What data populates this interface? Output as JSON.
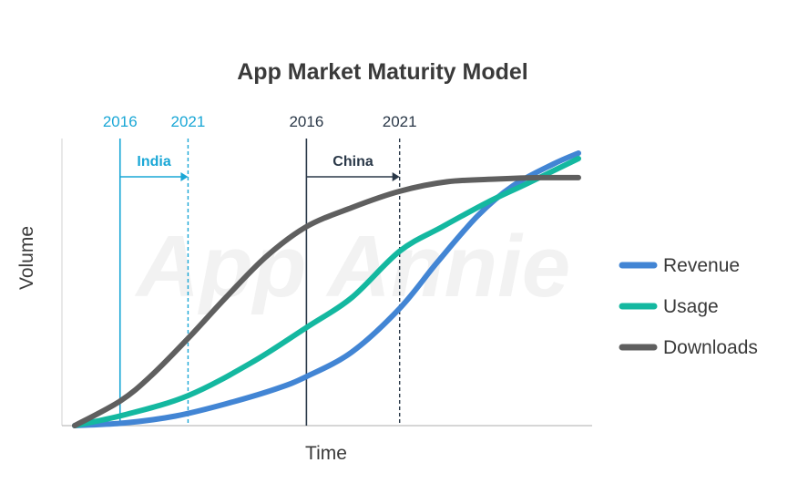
{
  "chart_data": {
    "type": "line",
    "title": "App Market Maturity Model",
    "xlabel": "Time",
    "ylabel": "Volume",
    "watermark": "App Annie",
    "xlim": [
      0,
      100
    ],
    "ylim": [
      0,
      100
    ],
    "legend_position": "right",
    "series": [
      {
        "name": "Revenue",
        "color": "#4285d4",
        "x": [
          0,
          10,
          20,
          30,
          40,
          46,
          55,
          64.5,
          72,
          80,
          87,
          95,
          100
        ],
        "y": [
          0,
          1,
          3.5,
          8,
          13.5,
          18,
          27,
          43,
          60,
          77,
          88,
          96,
          100
        ]
      },
      {
        "name": "Usage",
        "color": "#14b8a0",
        "x": [
          0,
          10,
          22.5,
          35,
          46,
          55,
          64.5,
          73,
          82,
          90,
          100
        ],
        "y": [
          0,
          4,
          11,
          23,
          36,
          47,
          64,
          73,
          82,
          89,
          98
        ]
      },
      {
        "name": "Downloads",
        "color": "#5f5f5f",
        "x": [
          0,
          9,
          15,
          22.5,
          30,
          38,
          46,
          55,
          64.5,
          74,
          84,
          92,
          100
        ],
        "y": [
          0,
          9,
          18,
          32,
          47,
          62,
          73,
          80,
          86,
          89.5,
          90.5,
          91,
          91
        ]
      }
    ],
    "annotations": [
      {
        "region": "India",
        "color": "#1aa7d6",
        "start": {
          "label": "2016",
          "x": 9
        },
        "end": {
          "label": "2021",
          "x": 22.5
        }
      },
      {
        "region": "China",
        "color": "#2a3848",
        "start": {
          "label": "2016",
          "x": 46
        },
        "end": {
          "label": "2021",
          "x": 64.5
        }
      }
    ]
  }
}
